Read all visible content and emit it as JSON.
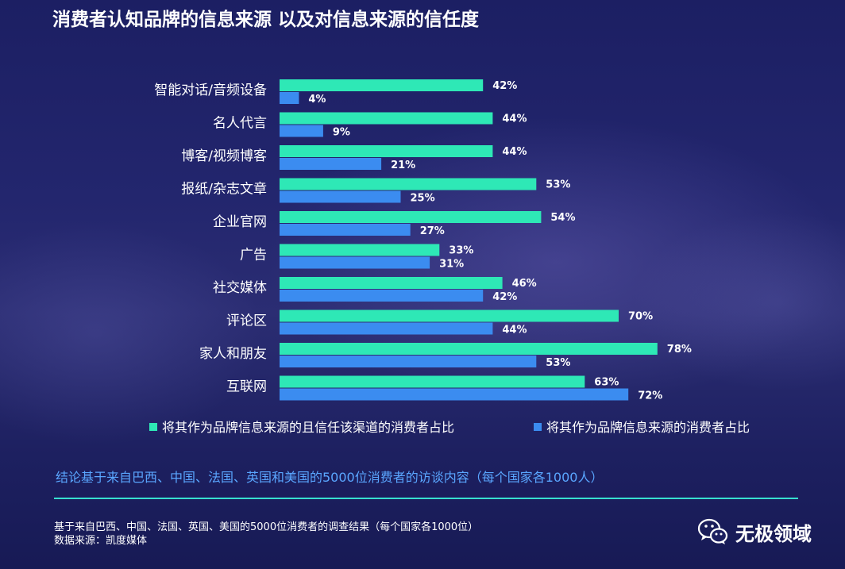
{
  "colors": {
    "trust_series": "#2ee8b6",
    "source_series": "#3b8cf0",
    "label_text": "#ffffff",
    "conclusion_text": "#5aa6ff",
    "divider": "#37e0d0"
  },
  "chart_data": {
    "type": "bar",
    "orientation": "horizontal",
    "title": "消费者认知品牌的信息来源 以及对信息来源的信任度",
    "categories": [
      "智能对话/音频设备",
      "名人代言",
      "博客/视频博客",
      "报纸/杂志文章",
      "企业官网",
      "广告",
      "社交媒体",
      "评论区",
      "家人和朋友",
      "互联网"
    ],
    "series": [
      {
        "name": "将其作为品牌信息来源的且信任该渠道的消费者占比",
        "values": [
          42,
          44,
          44,
          53,
          54,
          33,
          46,
          70,
          78,
          63
        ],
        "labels": [
          "42%",
          "44%",
          "44%",
          "53%",
          "54%",
          "33%",
          "46%",
          "70%",
          "78%",
          "63%"
        ]
      },
      {
        "name": "将其作为品牌信息来源的消费者占比",
        "values": [
          4,
          9,
          21,
          25,
          27,
          31,
          42,
          44,
          53,
          72
        ],
        "labels": [
          "4%",
          "9%",
          "21%",
          "25%",
          "27%",
          "31%",
          "42%",
          "44%",
          "53%",
          "72%"
        ]
      }
    ],
    "unit": "%",
    "xlim": [
      0,
      100
    ],
    "grid": false,
    "legend": "bottom"
  },
  "notes": {
    "conclusion": "结论基于来自巴西、中国、法国、英国和美国的5000位消费者的访谈内容（每个国家各1000人）",
    "footnote_1": "基于来自巴西、中国、法国、英国、美国的5000位消费者的调查结果（每个国家各1000位）",
    "footnote_2": "数据来源：凯度媒体"
  },
  "brand": {
    "icon": "wechat-icon",
    "name": "无极领域"
  }
}
